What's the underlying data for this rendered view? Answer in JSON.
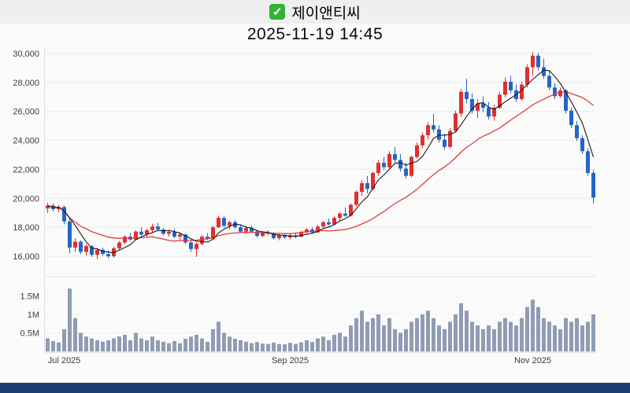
{
  "page": {
    "background": "#fbfbfb",
    "topbar_background": "#efefef",
    "bottom_bar_color": "#1e3f72"
  },
  "header": {
    "title": "제이앤티씨",
    "datetime": "2025-11-19 14:45",
    "checkbox": {
      "checked": true,
      "color": "#35b235",
      "check_glyph": "✓"
    }
  },
  "chart_data": {
    "type": "candlestick",
    "title": "제이앤티씨",
    "subtitle": "2025-11-19 14:45",
    "legend_position": "none",
    "grid": true,
    "price_axis": {
      "ticks": [
        {
          "v": 30000,
          "label": "30,000"
        },
        {
          "v": 28000,
          "label": "28,000"
        },
        {
          "v": 26000,
          "label": "26,000"
        },
        {
          "v": 24000,
          "label": "24,000"
        },
        {
          "v": 22000,
          "label": "22,000"
        },
        {
          "v": 20000,
          "label": "20,000"
        },
        {
          "v": 18000,
          "label": "18,000"
        },
        {
          "v": 16000,
          "label": "16,000"
        }
      ],
      "range": [
        15500,
        30500
      ]
    },
    "volume_axis": {
      "ticks": [
        {
          "v": 1500000,
          "label": "1.5M"
        },
        {
          "v": 1000000,
          "label": "1M"
        },
        {
          "v": 500000,
          "label": "0.5M"
        }
      ],
      "range": [
        0,
        1800000
      ]
    },
    "x_ticks": [
      {
        "i": 3,
        "label": "Jul 2025"
      },
      {
        "i": 44,
        "label": "Sep 2025"
      },
      {
        "i": 88,
        "label": "Nov 2025"
      }
    ],
    "ma_short_window": 5,
    "ma_long_window": 20,
    "colors": {
      "up": "#e12f2f",
      "down": "#2565c7",
      "ma_short": "#1a1a1a",
      "ma_long": "#e23b3b",
      "volume": "#8f9cb3",
      "grid": "#e9e9e9",
      "axis_line": "#cfcfcf",
      "axis_text": "#3c3c3c"
    },
    "candles": [
      [
        19300,
        19700,
        19000,
        19500,
        350000
      ],
      [
        19500,
        19650,
        19100,
        19250,
        280000
      ],
      [
        19250,
        19550,
        19050,
        19400,
        240000
      ],
      [
        19400,
        19500,
        18200,
        18400,
        600000
      ],
      [
        18400,
        18600,
        16200,
        16600,
        1700000
      ],
      [
        16600,
        17250,
        16300,
        17000,
        900000
      ],
      [
        17000,
        17100,
        16150,
        16300,
        500000
      ],
      [
        16300,
        16850,
        16050,
        16700,
        400000
      ],
      [
        16700,
        16750,
        15950,
        16100,
        350000
      ],
      [
        16100,
        16550,
        15800,
        16450,
        300000
      ],
      [
        16450,
        16600,
        16050,
        16150,
        260000
      ],
      [
        16150,
        16400,
        15850,
        16000,
        300000
      ],
      [
        16000,
        16650,
        15900,
        16550,
        350000
      ],
      [
        16550,
        17050,
        16450,
        16950,
        400000
      ],
      [
        16950,
        17450,
        16850,
        17350,
        450000
      ],
      [
        17350,
        17600,
        17050,
        17150,
        300000
      ],
      [
        17150,
        17800,
        17100,
        17700,
        500000
      ],
      [
        17700,
        18000,
        17400,
        17500,
        350000
      ],
      [
        17500,
        17900,
        17350,
        17800,
        300000
      ],
      [
        17800,
        18250,
        17650,
        18050,
        400000
      ],
      [
        18050,
        18300,
        17750,
        17850,
        300000
      ],
      [
        17850,
        17950,
        17450,
        17550,
        260000
      ],
      [
        17550,
        17800,
        17350,
        17700,
        220000
      ],
      [
        17700,
        17900,
        17250,
        17350,
        280000
      ],
      [
        17350,
        17650,
        17150,
        17500,
        220000
      ],
      [
        17500,
        17550,
        16850,
        16950,
        340000
      ],
      [
        16950,
        17100,
        16300,
        16500,
        400000
      ],
      [
        16500,
        16950,
        15950,
        16850,
        450000
      ],
      [
        16850,
        17450,
        16750,
        17350,
        350000
      ],
      [
        17350,
        17600,
        17100,
        17200,
        260000
      ],
      [
        17200,
        18100,
        17150,
        18000,
        600000
      ],
      [
        18000,
        18800,
        17950,
        18650,
        800000
      ],
      [
        18650,
        18750,
        17950,
        18100,
        500000
      ],
      [
        18100,
        18450,
        17850,
        18350,
        400000
      ],
      [
        18350,
        18500,
        17900,
        18000,
        340000
      ],
      [
        18000,
        18200,
        17600,
        17700,
        300000
      ],
      [
        17700,
        18050,
        17550,
        17950,
        260000
      ],
      [
        17950,
        18100,
        17600,
        17700,
        220000
      ],
      [
        17700,
        17850,
        17300,
        17400,
        250000
      ],
      [
        17400,
        17750,
        17300,
        17650,
        210000
      ],
      [
        17650,
        17800,
        17450,
        17550,
        200000
      ],
      [
        17550,
        17650,
        17150,
        17250,
        240000
      ],
      [
        17250,
        17550,
        17100,
        17450,
        200000
      ],
      [
        17450,
        17550,
        17200,
        17300,
        190000
      ],
      [
        17300,
        17550,
        17150,
        17450,
        230000
      ],
      [
        17450,
        17600,
        17250,
        17350,
        200000
      ],
      [
        17350,
        17750,
        17300,
        17650,
        240000
      ],
      [
        17650,
        17950,
        17550,
        17850,
        300000
      ],
      [
        17850,
        18000,
        17550,
        17650,
        250000
      ],
      [
        17650,
        18150,
        17600,
        18050,
        350000
      ],
      [
        18050,
        18450,
        17950,
        18350,
        400000
      ],
      [
        18350,
        18600,
        18100,
        18200,
        300000
      ],
      [
        18200,
        18750,
        18150,
        18650,
        450000
      ],
      [
        18650,
        19050,
        18450,
        18950,
        500000
      ],
      [
        18950,
        19350,
        18700,
        18800,
        400000
      ],
      [
        18800,
        19650,
        18750,
        19550,
        700000
      ],
      [
        19550,
        20550,
        19450,
        20450,
        900000
      ],
      [
        20450,
        21250,
        20150,
        21050,
        1100000
      ],
      [
        21050,
        21550,
        20350,
        20650,
        800000
      ],
      [
        20650,
        21850,
        20550,
        21750,
        900000
      ],
      [
        21750,
        22650,
        21550,
        22450,
        1000000
      ],
      [
        22450,
        22850,
        21950,
        22150,
        700000
      ],
      [
        22150,
        23250,
        22050,
        23050,
        900000
      ],
      [
        23050,
        23550,
        22450,
        22650,
        600000
      ],
      [
        22650,
        23050,
        21850,
        22050,
        500000
      ],
      [
        22050,
        22450,
        21350,
        21550,
        600000
      ],
      [
        21550,
        22950,
        21450,
        22850,
        800000
      ],
      [
        22850,
        23850,
        22750,
        23650,
        900000
      ],
      [
        23650,
        24550,
        23450,
        24350,
        1000000
      ],
      [
        24350,
        25250,
        24050,
        25050,
        1100000
      ],
      [
        25050,
        25850,
        24550,
        24750,
        900000
      ],
      [
        24750,
        25050,
        23850,
        24050,
        700000
      ],
      [
        24050,
        24450,
        23350,
        23550,
        600000
      ],
      [
        23550,
        24850,
        23450,
        24650,
        800000
      ],
      [
        24650,
        26050,
        24550,
        25850,
        1000000
      ],
      [
        25850,
        27550,
        25650,
        27350,
        1300000
      ],
      [
        27350,
        28250,
        26550,
        26850,
        1100000
      ],
      [
        26850,
        27250,
        25850,
        26050,
        800000
      ],
      [
        26050,
        26850,
        25550,
        26550,
        700000
      ],
      [
        26550,
        27050,
        25950,
        26250,
        600000
      ],
      [
        26250,
        26650,
        25450,
        25650,
        700000
      ],
      [
        25650,
        26450,
        25350,
        26250,
        600000
      ],
      [
        26250,
        27350,
        26150,
        27150,
        800000
      ],
      [
        27150,
        28350,
        26950,
        28050,
        900000
      ],
      [
        28050,
        28450,
        27250,
        27450,
        800000
      ],
      [
        27450,
        27850,
        26650,
        26850,
        700000
      ],
      [
        26850,
        28050,
        26750,
        27850,
        900000
      ],
      [
        27850,
        29250,
        27650,
        29050,
        1200000
      ],
      [
        29050,
        30100,
        28450,
        29850,
        1400000
      ],
      [
        29850,
        30050,
        28850,
        29050,
        1200000
      ],
      [
        29050,
        29650,
        28250,
        28450,
        900000
      ],
      [
        28450,
        28850,
        27450,
        27650,
        800000
      ],
      [
        27650,
        27950,
        26850,
        27050,
        700000
      ],
      [
        27050,
        27650,
        26950,
        27450,
        600000
      ],
      [
        27450,
        27550,
        25850,
        26050,
        900000
      ],
      [
        26050,
        26250,
        24850,
        25050,
        800000
      ],
      [
        25050,
        25350,
        23950,
        24150,
        900000
      ],
      [
        24150,
        24350,
        23050,
        23250,
        700000
      ],
      [
        23250,
        23450,
        21550,
        21750,
        800000
      ],
      [
        21750,
        21950,
        19650,
        20050,
        1000000
      ]
    ]
  }
}
